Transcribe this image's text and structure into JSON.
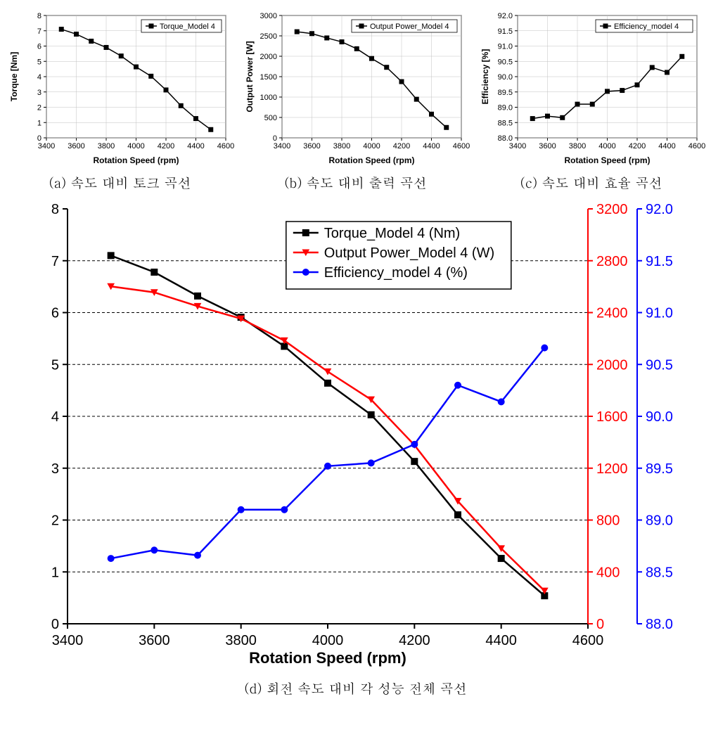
{
  "captions": {
    "a": "(a) 속도 대비 토크 곡선",
    "b": "(b) 속도 대비 출력 곡선",
    "c": "(c) 속도 대비 효율 곡선",
    "d": "(d) 회전 속도 대비 각 성능 전체 곡선"
  },
  "x": [
    3500,
    3600,
    3700,
    3800,
    3900,
    4000,
    4100,
    4200,
    4300,
    4400,
    4500
  ],
  "chart_a": {
    "legend": "Torque_Model 4",
    "ylabel": "Torque [Nm]",
    "xlabel": "Rotation Speed (rpm)",
    "xlim": [
      3400,
      4600
    ],
    "xtick": 200,
    "ylim": [
      0,
      8
    ],
    "ytick": 1,
    "values": [
      7.1,
      6.78,
      6.32,
      5.91,
      5.35,
      4.64,
      4.03,
      3.13,
      2.1,
      1.26,
      0.54
    ],
    "color": "#000000",
    "marker": "square",
    "bg": "#ffffff",
    "grid": "#c0c0c0",
    "font_sm": 11
  },
  "chart_b": {
    "legend": "Output Power_Model 4",
    "ylabel": "Output Power [W]",
    "xlabel": "Rotation Speed (rpm)",
    "xlim": [
      3400,
      4600
    ],
    "xtick": 200,
    "ylim": [
      0,
      3000
    ],
    "ytick": 500,
    "values": [
      2602,
      2556,
      2449,
      2353,
      2184,
      1945,
      1729,
      1378,
      946,
      581,
      254
    ],
    "color": "#000000",
    "marker": "square",
    "bg": "#ffffff",
    "grid": "#c0c0c0",
    "font_sm": 11
  },
  "chart_c": {
    "legend": "Efficiency_model 4",
    "ylabel": "Efficiency [%]",
    "xlabel": "Rotation Speed (rpm)",
    "xlim": [
      3400,
      4600
    ],
    "xtick": 200,
    "ylim": [
      88.0,
      92.0
    ],
    "ytick": 0.5,
    "values": [
      88.63,
      88.71,
      88.66,
      89.1,
      89.1,
      89.52,
      89.55,
      89.73,
      90.3,
      90.14,
      90.66
    ],
    "color": "#000000",
    "marker": "square",
    "bg": "#ffffff",
    "grid": "#c0c0c0",
    "font_sm": 11
  },
  "chart_d": {
    "xlabel": "Rotation Speed (rpm)",
    "xlim": [
      3400,
      4600
    ],
    "xtick": 200,
    "y1": {
      "lim": [
        0,
        8
      ],
      "tick": 1,
      "color": "#000000"
    },
    "y2": {
      "lim": [
        0,
        3200
      ],
      "tick": 400,
      "color": "#ff0000"
    },
    "y3": {
      "lim": [
        88.0,
        92.0
      ],
      "tick": 0.5,
      "color": "#0000ff"
    },
    "series": [
      {
        "name": "Torque_Model 4 (Nm)",
        "axis": "y1",
        "color": "#000000",
        "marker": "square",
        "values": [
          7.1,
          6.78,
          6.32,
          5.91,
          5.35,
          4.64,
          4.03,
          3.13,
          2.1,
          1.26,
          0.54
        ]
      },
      {
        "name": "Output Power_Model 4 (W)",
        "axis": "y2",
        "color": "#ff0000",
        "marker": "triangle-down",
        "values": [
          2602,
          2556,
          2449,
          2353,
          2184,
          1945,
          1729,
          1378,
          946,
          581,
          254
        ]
      },
      {
        "name": "Efficiency_model 4 (%)",
        "axis": "y3",
        "color": "#0000ff",
        "marker": "circle",
        "values": [
          88.63,
          88.71,
          88.66,
          89.1,
          89.1,
          89.52,
          89.55,
          89.73,
          90.3,
          90.14,
          90.66
        ]
      }
    ],
    "grid_color": "#000000",
    "grid_dash": "4,3",
    "bg": "#ffffff",
    "font_axis": 22,
    "font_tick": 20,
    "font_legend": 20,
    "line_width": 2.5,
    "marker_size": 9
  }
}
